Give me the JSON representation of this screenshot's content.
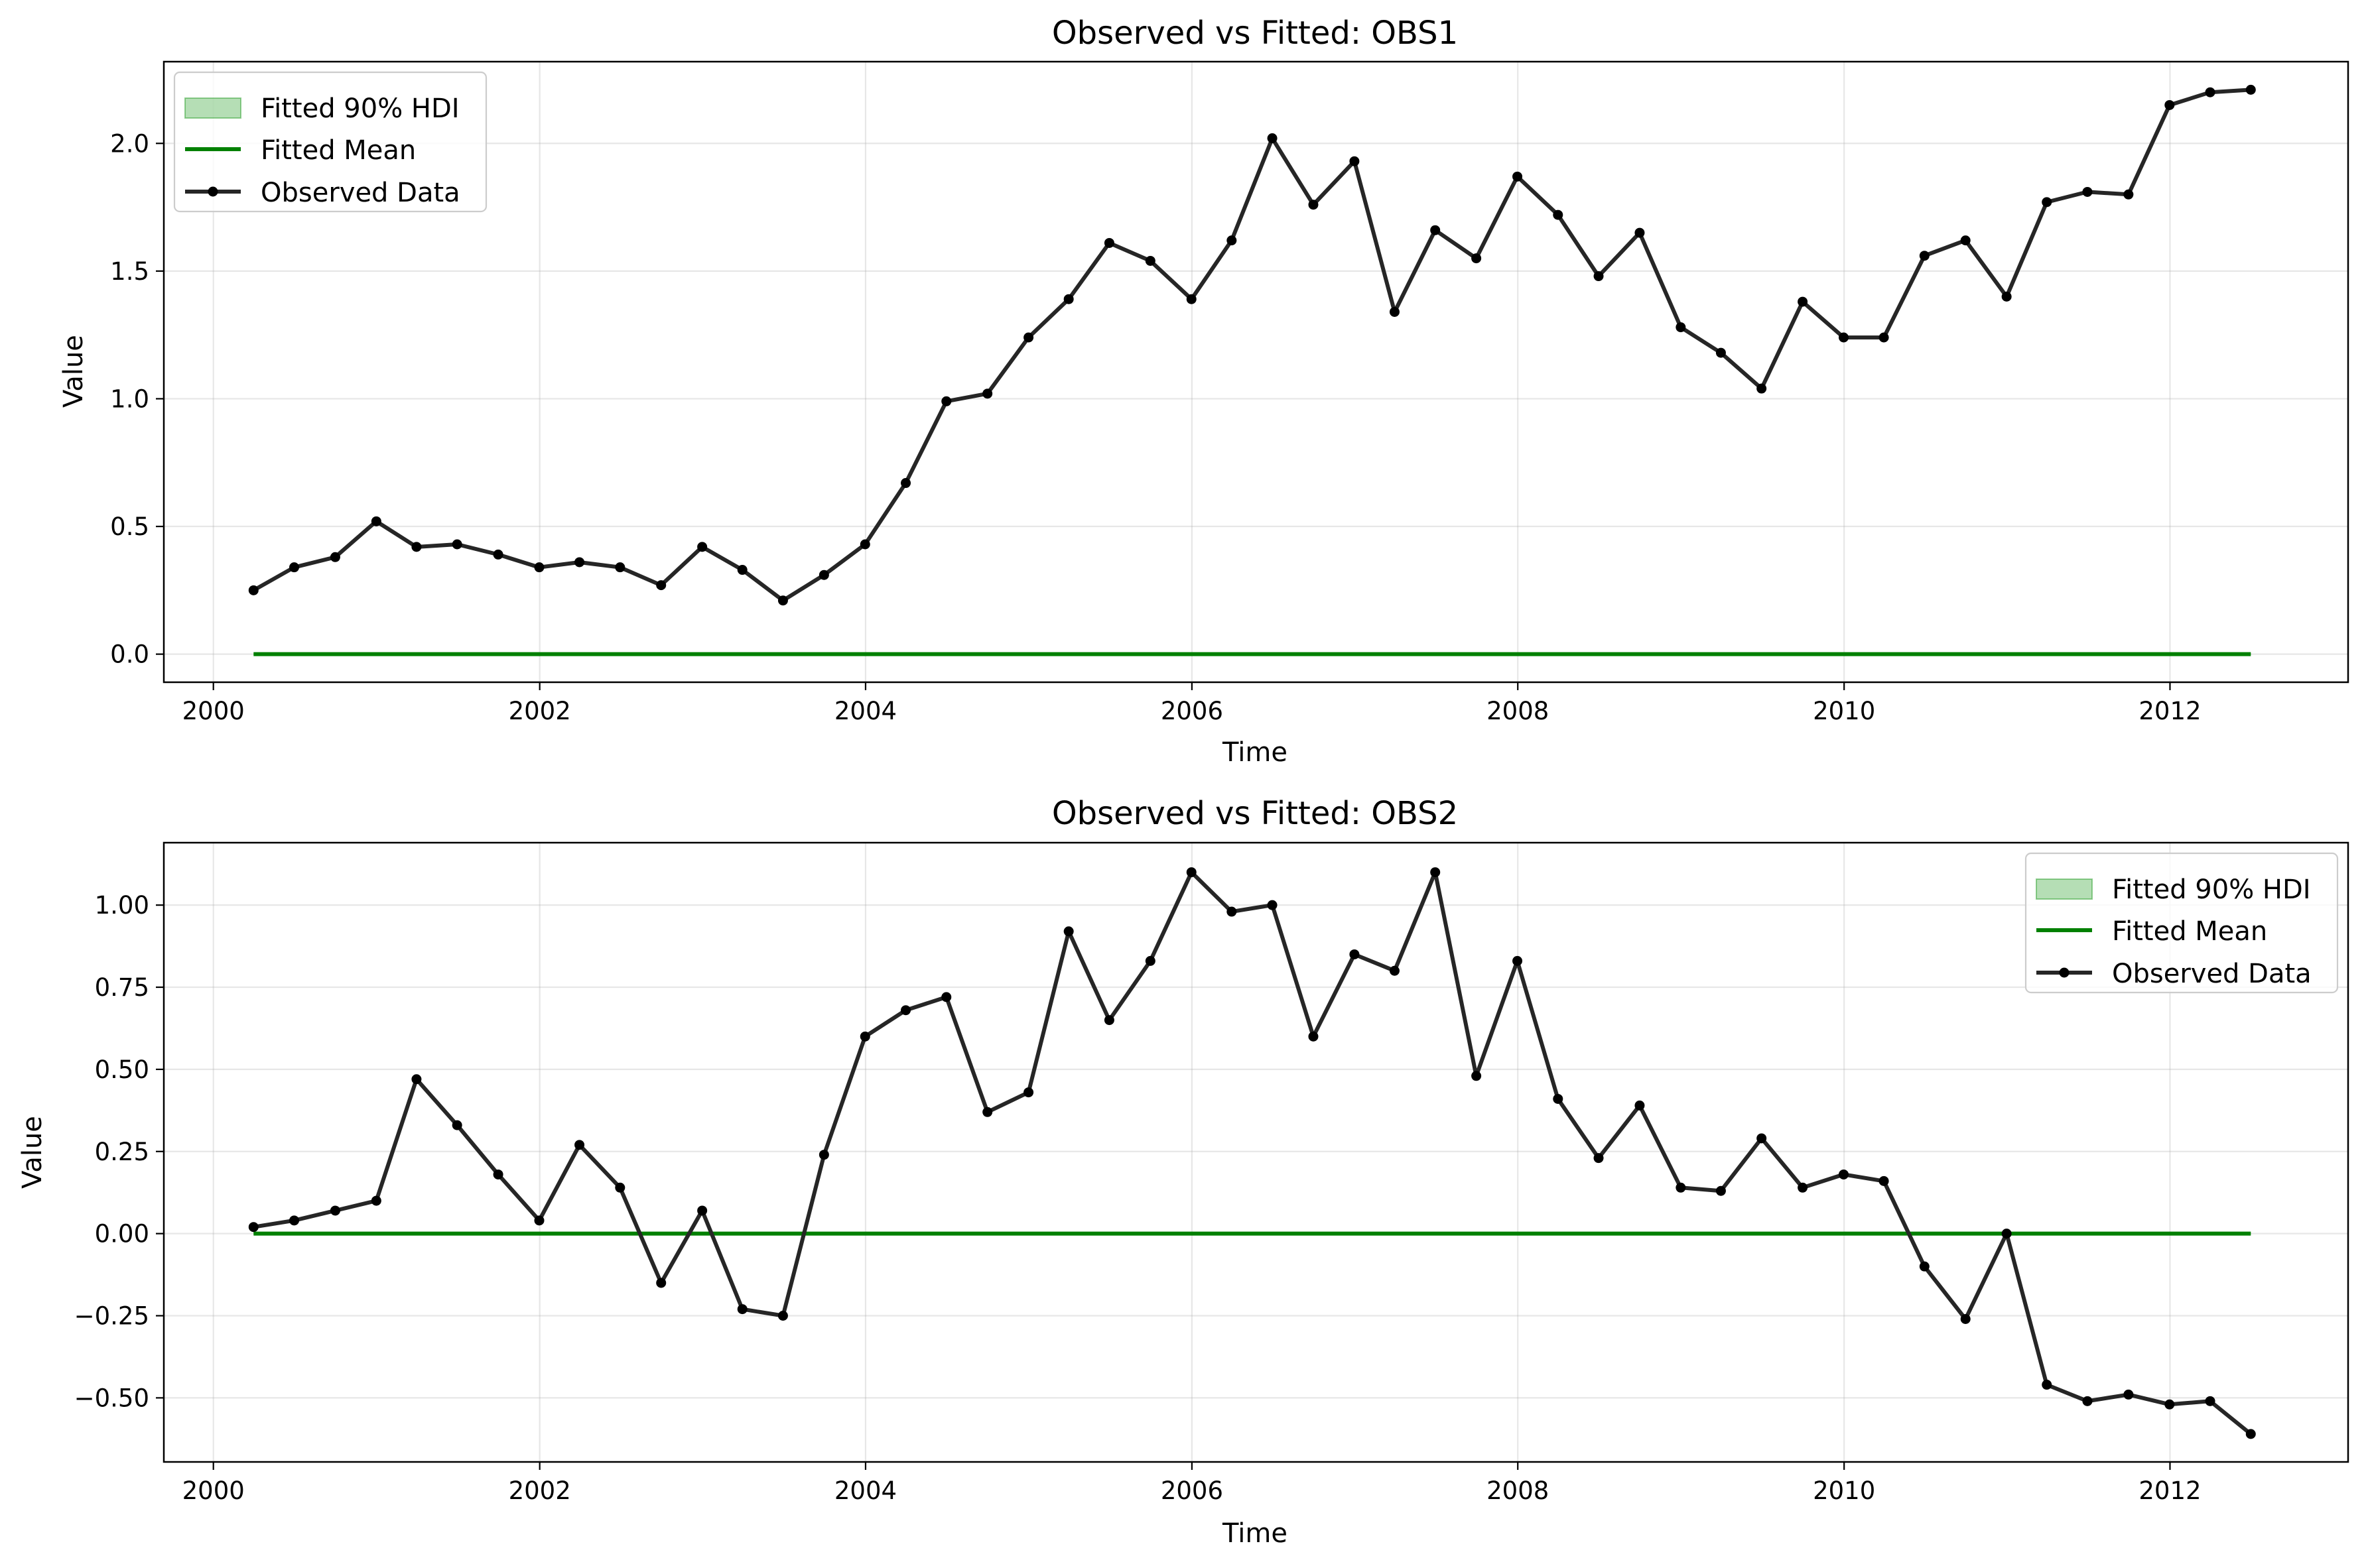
{
  "chart_data": [
    {
      "type": "line",
      "title": "Observed vs Fitted: OBS1",
      "xlabel": "Time",
      "ylabel": "Value",
      "xlim": [
        "1999-09-12",
        "2013-02-03"
      ],
      "ylim": [
        -0.11,
        2.32
      ],
      "xticks": [
        "2000",
        "2002",
        "2004",
        "2006",
        "2008",
        "2010",
        "2012"
      ],
      "yticks": [
        "0.0",
        "0.5",
        "1.0",
        "1.5",
        "2.0"
      ],
      "grid": true,
      "legend_position": "upper-left",
      "legend": [
        "Fitted 90% HDI",
        "Fitted Mean",
        "Observed Data"
      ],
      "x": [
        "2000-03-31",
        "2000-06-30",
        "2000-09-30",
        "2000-12-31",
        "2001-03-31",
        "2001-06-30",
        "2001-09-30",
        "2001-12-31",
        "2002-03-31",
        "2002-06-30",
        "2002-09-30",
        "2002-12-31",
        "2003-03-31",
        "2003-06-30",
        "2003-09-30",
        "2003-12-31",
        "2004-03-31",
        "2004-06-30",
        "2004-09-30",
        "2004-12-31",
        "2005-03-31",
        "2005-06-30",
        "2005-09-30",
        "2005-12-31",
        "2006-03-31",
        "2006-06-30",
        "2006-09-30",
        "2006-12-31",
        "2007-03-31",
        "2007-06-30",
        "2007-09-30",
        "2007-12-31",
        "2008-03-31",
        "2008-06-30",
        "2008-09-30",
        "2008-12-31",
        "2009-03-31",
        "2009-06-30",
        "2009-09-30",
        "2009-12-31",
        "2010-03-31",
        "2010-06-30",
        "2010-09-30",
        "2010-12-31",
        "2011-03-31",
        "2011-06-30",
        "2011-09-30",
        "2011-12-31",
        "2012-03-31",
        "2012-06-30"
      ],
      "series": [
        {
          "name": "Fitted 90% HDI",
          "color": "#2ca02c",
          "lower": [
            0,
            0,
            0,
            0,
            0,
            0,
            0,
            0,
            0,
            0,
            0,
            0,
            0,
            0,
            0,
            0,
            0,
            0,
            0,
            0,
            0,
            0,
            0,
            0,
            0,
            0,
            0,
            0,
            0,
            0,
            0,
            0,
            0,
            0,
            0,
            0,
            0,
            0,
            0,
            0,
            0,
            0,
            0,
            0,
            0,
            0,
            0,
            0,
            0,
            0
          ],
          "upper": [
            0,
            0,
            0,
            0,
            0,
            0,
            0,
            0,
            0,
            0,
            0,
            0,
            0,
            0,
            0,
            0,
            0,
            0,
            0,
            0,
            0,
            0,
            0,
            0,
            0,
            0,
            0,
            0,
            0,
            0,
            0,
            0,
            0,
            0,
            0,
            0,
            0,
            0,
            0,
            0,
            0,
            0,
            0,
            0,
            0,
            0,
            0,
            0,
            0,
            0
          ]
        },
        {
          "name": "Fitted Mean",
          "color": "#008000",
          "values": [
            0,
            0,
            0,
            0,
            0,
            0,
            0,
            0,
            0,
            0,
            0,
            0,
            0,
            0,
            0,
            0,
            0,
            0,
            0,
            0,
            0,
            0,
            0,
            0,
            0,
            0,
            0,
            0,
            0,
            0,
            0,
            0,
            0,
            0,
            0,
            0,
            0,
            0,
            0,
            0,
            0,
            0,
            0,
            0,
            0,
            0,
            0,
            0,
            0,
            0
          ]
        },
        {
          "name": "Observed Data",
          "color": "#262626",
          "values": [
            0.25,
            0.34,
            0.38,
            0.52,
            0.42,
            0.43,
            0.39,
            0.34,
            0.36,
            0.34,
            0.27,
            0.42,
            0.33,
            0.21,
            0.31,
            0.43,
            0.67,
            0.99,
            1.02,
            1.24,
            1.39,
            1.61,
            1.54,
            1.39,
            1.62,
            2.02,
            1.76,
            1.93,
            1.34,
            1.66,
            1.55,
            1.87,
            1.72,
            1.48,
            1.65,
            1.28,
            1.18,
            1.04,
            1.38,
            1.24,
            1.24,
            1.56,
            1.62,
            1.4,
            1.77,
            1.81,
            1.8,
            2.15,
            2.2,
            2.21
          ]
        }
      ]
    },
    {
      "type": "line",
      "title": "Observed vs Fitted: OBS2",
      "xlabel": "Time",
      "ylabel": "Value",
      "xlim": [
        "1999-09-12",
        "2013-02-03"
      ],
      "ylim": [
        -0.695,
        1.19
      ],
      "xticks": [
        "2000",
        "2002",
        "2004",
        "2006",
        "2008",
        "2010",
        "2012"
      ],
      "yticks": [
        "−0.50",
        "−0.25",
        "0.00",
        "0.25",
        "0.50",
        "0.75",
        "1.00"
      ],
      "grid": true,
      "legend_position": "upper-right",
      "legend": [
        "Fitted 90% HDI",
        "Fitted Mean",
        "Observed Data"
      ],
      "x": [
        "2000-03-31",
        "2000-06-30",
        "2000-09-30",
        "2000-12-31",
        "2001-03-31",
        "2001-06-30",
        "2001-09-30",
        "2001-12-31",
        "2002-03-31",
        "2002-06-30",
        "2002-09-30",
        "2002-12-31",
        "2003-03-31",
        "2003-06-30",
        "2003-09-30",
        "2003-12-31",
        "2004-03-31",
        "2004-06-30",
        "2004-09-30",
        "2004-12-31",
        "2005-03-31",
        "2005-06-30",
        "2005-09-30",
        "2005-12-31",
        "2006-03-31",
        "2006-06-30",
        "2006-09-30",
        "2006-12-31",
        "2007-03-31",
        "2007-06-30",
        "2007-09-30",
        "2007-12-31",
        "2008-03-31",
        "2008-06-30",
        "2008-09-30",
        "2008-12-31",
        "2009-03-31",
        "2009-06-30",
        "2009-09-30",
        "2009-12-31",
        "2010-03-31",
        "2010-06-30",
        "2010-09-30",
        "2010-12-31",
        "2011-03-31",
        "2011-06-30",
        "2011-09-30",
        "2011-12-31",
        "2012-03-31",
        "2012-06-30"
      ],
      "series": [
        {
          "name": "Fitted 90% HDI",
          "color": "#2ca02c",
          "lower": [
            0,
            0,
            0,
            0,
            0,
            0,
            0,
            0,
            0,
            0,
            0,
            0,
            0,
            0,
            0,
            0,
            0,
            0,
            0,
            0,
            0,
            0,
            0,
            0,
            0,
            0,
            0,
            0,
            0,
            0,
            0,
            0,
            0,
            0,
            0,
            0,
            0,
            0,
            0,
            0,
            0,
            0,
            0,
            0,
            0,
            0,
            0,
            0,
            0,
            0
          ],
          "upper": [
            0,
            0,
            0,
            0,
            0,
            0,
            0,
            0,
            0,
            0,
            0,
            0,
            0,
            0,
            0,
            0,
            0,
            0,
            0,
            0,
            0,
            0,
            0,
            0,
            0,
            0,
            0,
            0,
            0,
            0,
            0,
            0,
            0,
            0,
            0,
            0,
            0,
            0,
            0,
            0,
            0,
            0,
            0,
            0,
            0,
            0,
            0,
            0,
            0,
            0
          ]
        },
        {
          "name": "Fitted Mean",
          "color": "#008000",
          "values": [
            0,
            0,
            0,
            0,
            0,
            0,
            0,
            0,
            0,
            0,
            0,
            0,
            0,
            0,
            0,
            0,
            0,
            0,
            0,
            0,
            0,
            0,
            0,
            0,
            0,
            0,
            0,
            0,
            0,
            0,
            0,
            0,
            0,
            0,
            0,
            0,
            0,
            0,
            0,
            0,
            0,
            0,
            0,
            0,
            0,
            0,
            0,
            0,
            0,
            0
          ]
        },
        {
          "name": "Observed Data",
          "color": "#262626",
          "values": [
            0.02,
            0.04,
            0.07,
            0.1,
            0.47,
            0.33,
            0.18,
            0.04,
            0.27,
            0.14,
            -0.15,
            0.07,
            -0.23,
            -0.25,
            0.24,
            0.6,
            0.68,
            0.72,
            0.37,
            0.43,
            0.92,
            0.65,
            0.83,
            1.1,
            0.98,
            1.0,
            0.6,
            0.85,
            0.8,
            1.1,
            0.48,
            0.83,
            0.41,
            0.23,
            0.39,
            0.14,
            0.13,
            0.29,
            0.14,
            0.18,
            0.16,
            -0.1,
            -0.26,
            0.0,
            -0.46,
            -0.51,
            -0.49,
            -0.52,
            -0.51,
            -0.61
          ]
        }
      ]
    }
  ]
}
